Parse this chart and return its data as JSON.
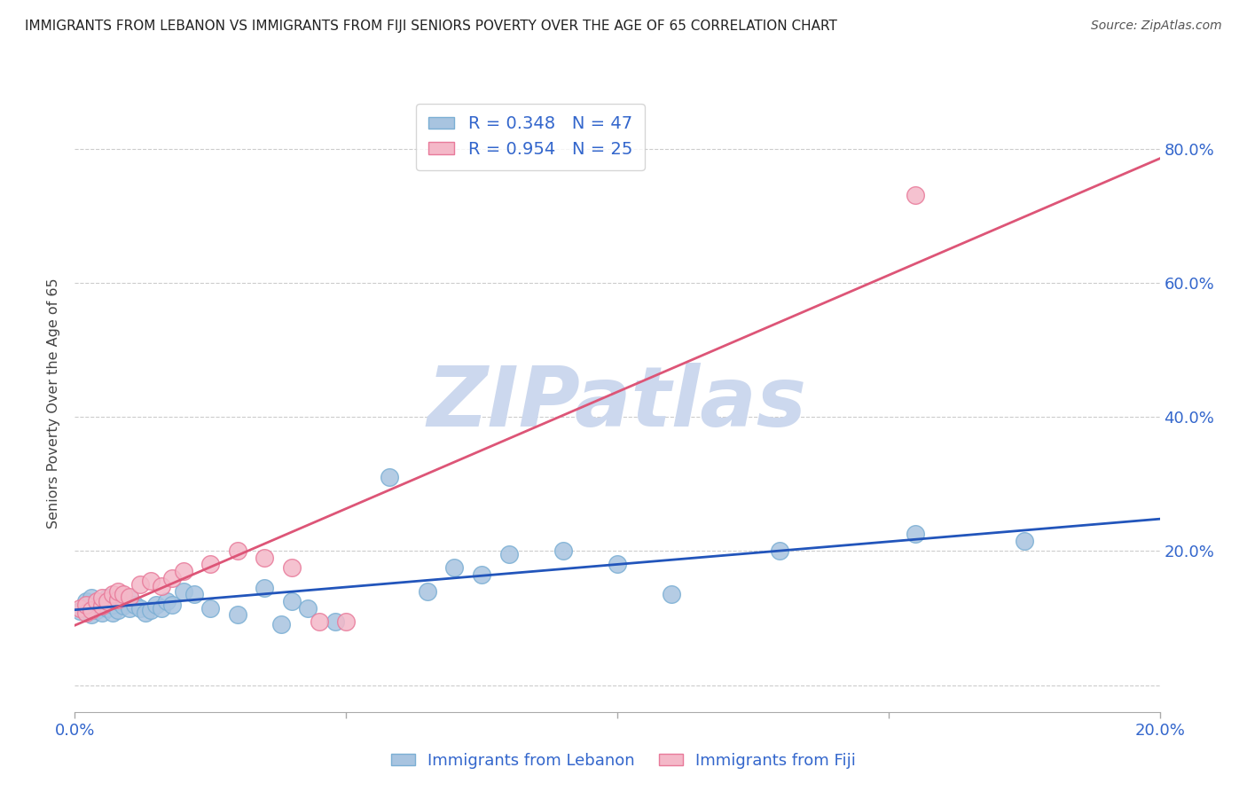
{
  "title": "IMMIGRANTS FROM LEBANON VS IMMIGRANTS FROM FIJI SENIORS POVERTY OVER THE AGE OF 65 CORRELATION CHART",
  "source": "Source: ZipAtlas.com",
  "ylabel": "Seniors Poverty Over the Age of 65",
  "xlim": [
    0.0,
    0.2
  ],
  "ylim": [
    -0.04,
    0.88
  ],
  "yticks": [
    0.0,
    0.2,
    0.4,
    0.6,
    0.8
  ],
  "ytick_labels": [
    "",
    "20.0%",
    "40.0%",
    "60.0%",
    "80.0%"
  ],
  "xticks": [
    0.0,
    0.05,
    0.1,
    0.15,
    0.2
  ],
  "xtick_labels": [
    "0.0%",
    "",
    "",
    "",
    "20.0%"
  ],
  "lebanon_color": "#a8c4e0",
  "lebanon_edge": "#7bafd4",
  "fiji_color": "#f4b8c8",
  "fiji_edge": "#e87a9a",
  "lebanon_line_color": "#2255bb",
  "fiji_line_color": "#dd5577",
  "lebanon_R": 0.348,
  "lebanon_N": 47,
  "fiji_R": 0.954,
  "fiji_N": 25,
  "legend_label_lebanon": "Immigrants from Lebanon",
  "legend_label_fiji": "Immigrants from Fiji",
  "watermark": "ZIPatlas",
  "watermark_color": "#ccd8ee",
  "axis_label_color": "#3366cc",
  "title_color": "#222222",
  "grid_color": "#cccccc",
  "lebanon_x": [
    0.001,
    0.002,
    0.002,
    0.003,
    0.003,
    0.003,
    0.004,
    0.004,
    0.005,
    0.005,
    0.006,
    0.006,
    0.007,
    0.007,
    0.008,
    0.008,
    0.009,
    0.01,
    0.01,
    0.011,
    0.012,
    0.013,
    0.014,
    0.015,
    0.016,
    0.017,
    0.018,
    0.02,
    0.022,
    0.025,
    0.03,
    0.035,
    0.038,
    0.04,
    0.043,
    0.048,
    0.058,
    0.065,
    0.07,
    0.075,
    0.08,
    0.09,
    0.1,
    0.11,
    0.13,
    0.155,
    0.175
  ],
  "lebanon_y": [
    0.11,
    0.125,
    0.115,
    0.12,
    0.105,
    0.13,
    0.118,
    0.112,
    0.108,
    0.122,
    0.115,
    0.13,
    0.108,
    0.12,
    0.112,
    0.125,
    0.118,
    0.13,
    0.115,
    0.12,
    0.115,
    0.108,
    0.112,
    0.12,
    0.115,
    0.125,
    0.12,
    0.14,
    0.135,
    0.115,
    0.105,
    0.145,
    0.09,
    0.125,
    0.115,
    0.095,
    0.31,
    0.14,
    0.175,
    0.165,
    0.195,
    0.2,
    0.18,
    0.135,
    0.2,
    0.225,
    0.215
  ],
  "fiji_x": [
    0.001,
    0.002,
    0.002,
    0.003,
    0.004,
    0.005,
    0.005,
    0.006,
    0.007,
    0.008,
    0.008,
    0.009,
    0.01,
    0.012,
    0.014,
    0.016,
    0.018,
    0.02,
    0.025,
    0.03,
    0.035,
    0.04,
    0.045,
    0.05,
    0.155
  ],
  "fiji_y": [
    0.115,
    0.108,
    0.12,
    0.112,
    0.125,
    0.118,
    0.13,
    0.125,
    0.135,
    0.128,
    0.14,
    0.135,
    0.132,
    0.15,
    0.155,
    0.148,
    0.16,
    0.17,
    0.18,
    0.2,
    0.19,
    0.175,
    0.095,
    0.095,
    0.73
  ]
}
